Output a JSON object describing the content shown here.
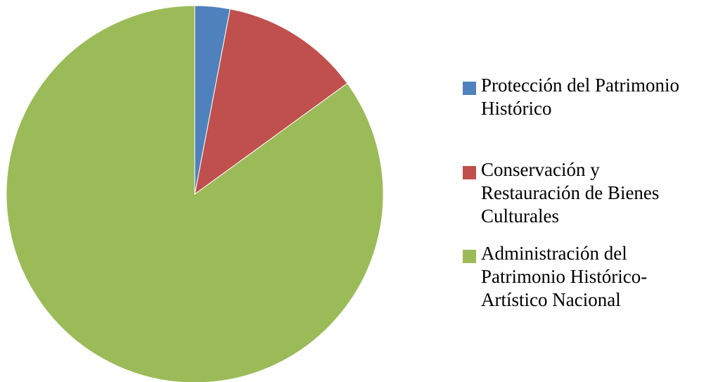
{
  "chart_data": {
    "type": "pie",
    "categories": [
      "Protección del Patrimonio\nHistórico",
      "Conservación y\nRestauración de Bienes\nCulturales",
      "Administración del\nPatrimonio Histórico-\nArtístico Nacional"
    ],
    "values": [
      3,
      12,
      85
    ],
    "colors": [
      "#4f81bd",
      "#c0504d",
      "#9bbb59"
    ],
    "legend_position": "right",
    "title": ""
  }
}
